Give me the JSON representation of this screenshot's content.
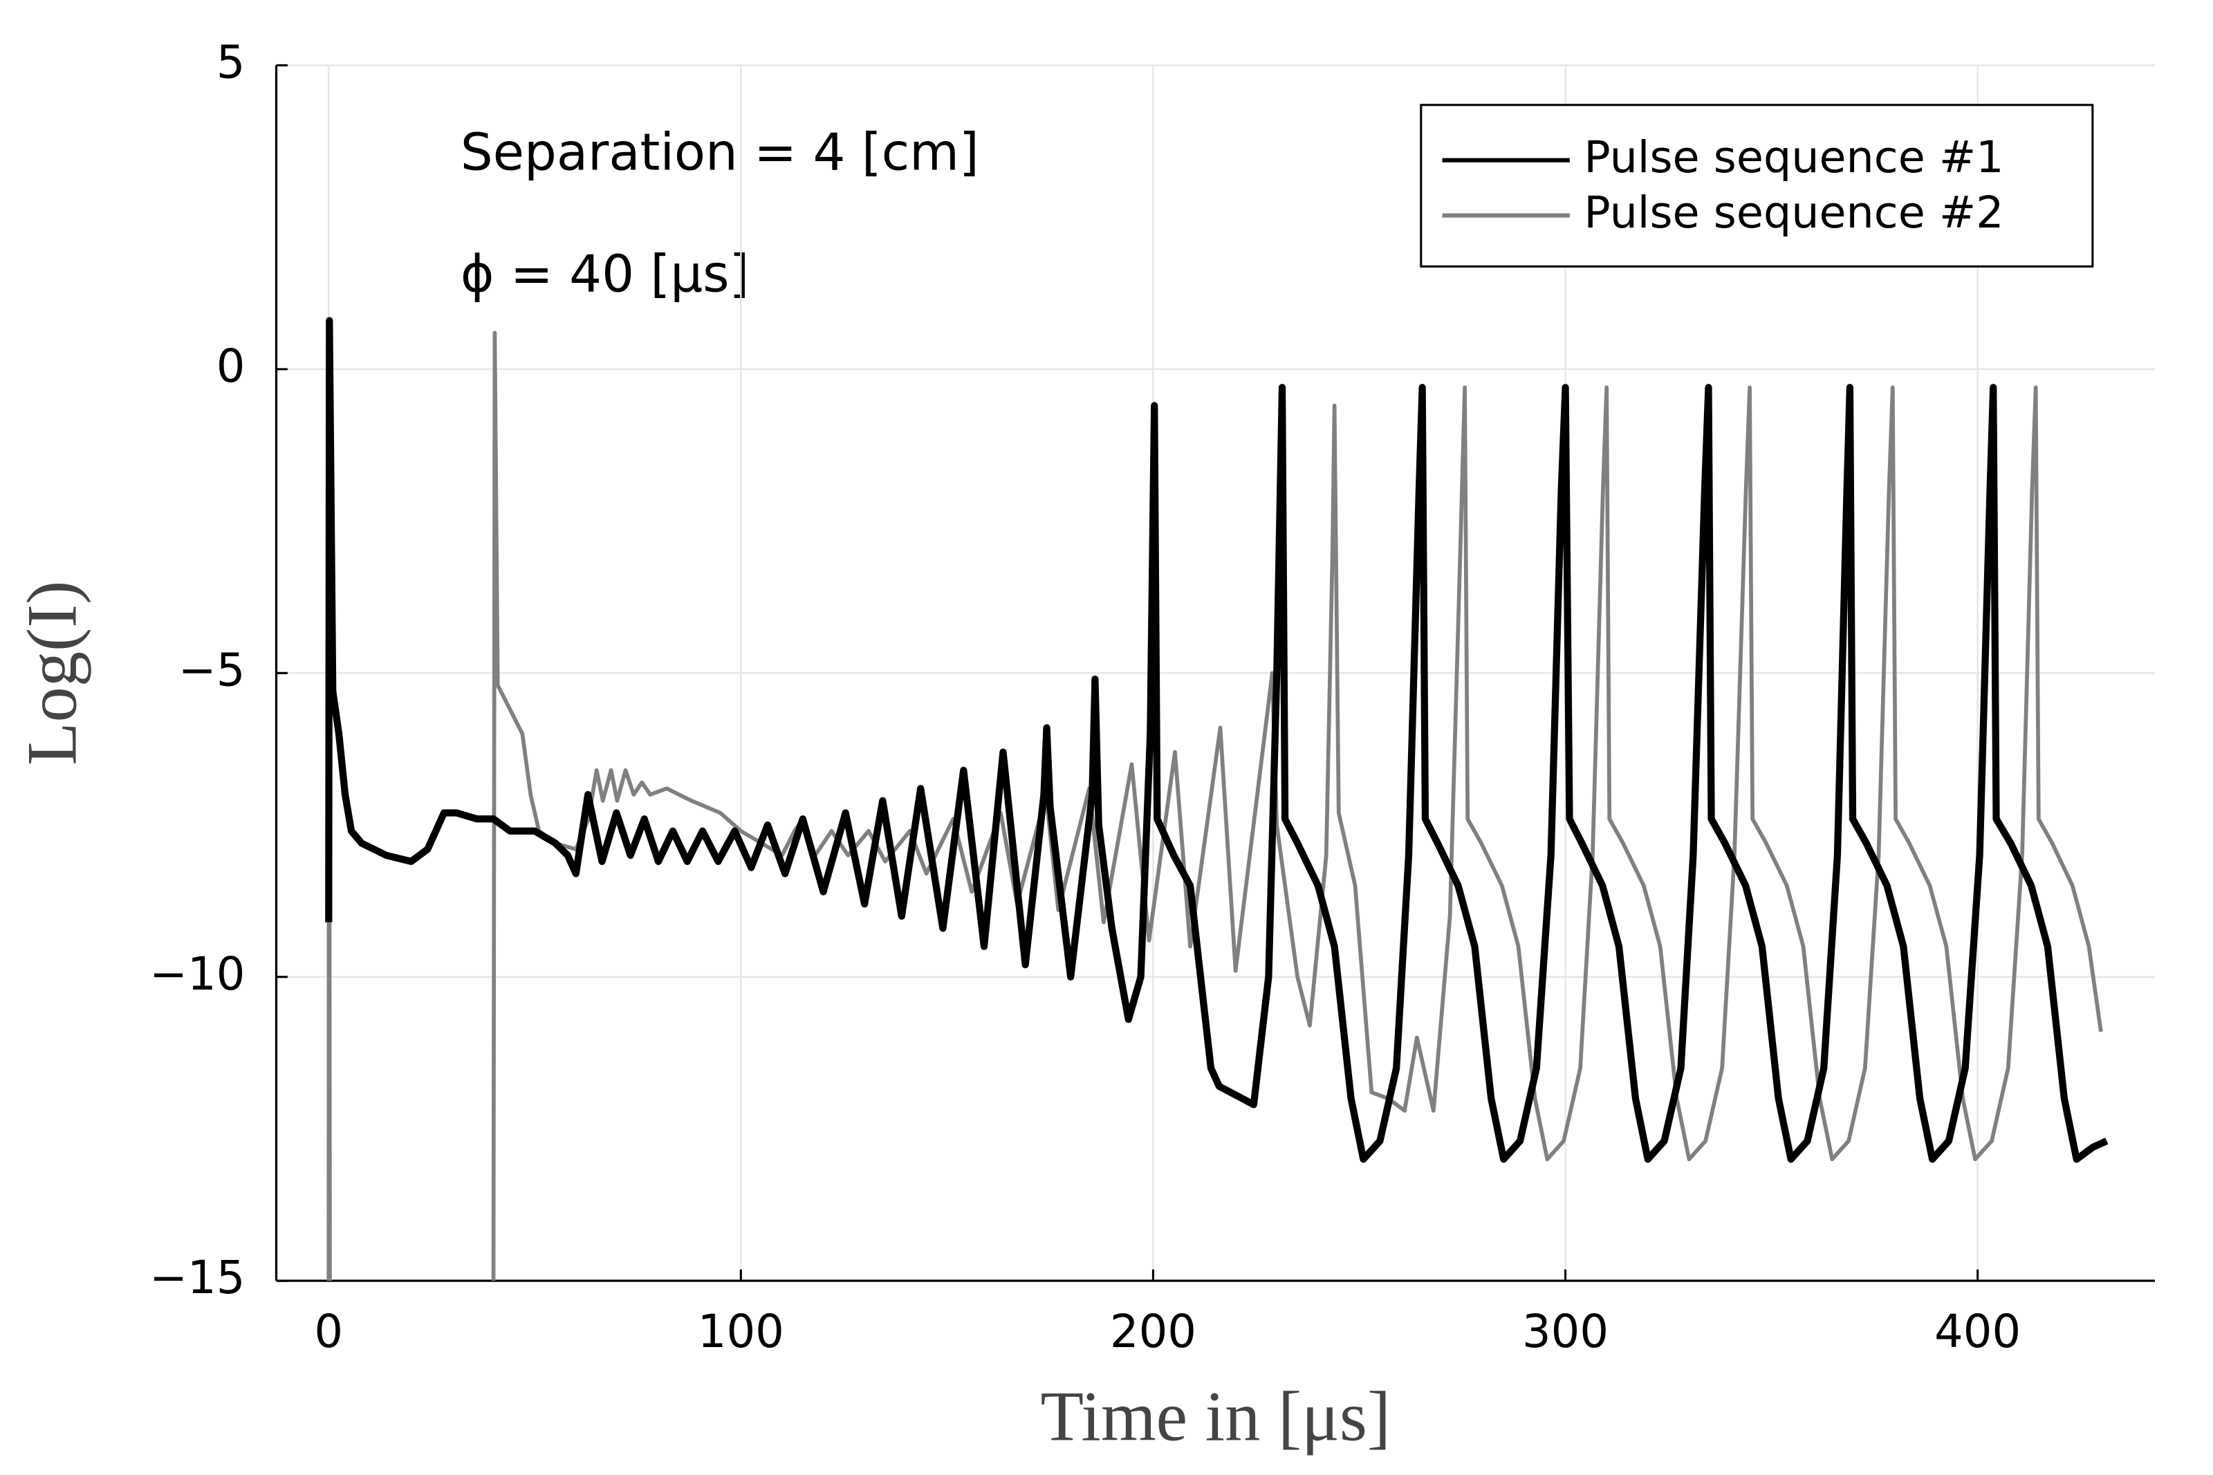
{
  "chart_data": {
    "type": "line",
    "xlabel": "Time in [μs]",
    "ylabel": "Log(I)",
    "annotations": [
      "Separation = 4 [cm]",
      "ϕ = 40 [μs]"
    ],
    "xlim": [
      -12.7,
      443
    ],
    "ylim": [
      -15,
      5
    ],
    "xticks": [
      0,
      100,
      200,
      300,
      400
    ],
    "yticks": [
      {
        "value": -15,
        "label": "−15"
      },
      {
        "value": -10,
        "label": "−10"
      },
      {
        "value": -5,
        "label": "−5"
      },
      0,
      5
    ],
    "grid": true,
    "legend": "top right",
    "series": [
      {
        "name": "Pulse sequence #1",
        "color": "#000000",
        "x": [
          0,
          0.2,
          1,
          2.5,
          4,
          5.5,
          8,
          14,
          20,
          24,
          28,
          31,
          36,
          40,
          44,
          50,
          55,
          58,
          60,
          62.9,
          66.3,
          69.8,
          73.2,
          76.6,
          80,
          83.5,
          87,
          90.7,
          94.5,
          98.5,
          102.5,
          106.5,
          110.7,
          115,
          120,
          125.4,
          130,
          134.4,
          139,
          143.6,
          149,
          154,
          159,
          163.6,
          169,
          173.5,
          174.2,
          175,
          180,
          185.2,
          185.9,
          186.8,
          190,
          194,
          197,
          199.3,
          200.3,
          201,
          205,
          209,
          214,
          216,
          224.4,
          228,
          230,
          231.3,
          232,
          235,
          240,
          244,
          248,
          251,
          255,
          259,
          262,
          264.5,
          265.3,
          266,
          269,
          274,
          278,
          282,
          285,
          289,
          293,
          296.5,
          299,
          300,
          301,
          304,
          309,
          313,
          317,
          320,
          324,
          328,
          331,
          333.8,
          334.7,
          335.4,
          338.7,
          343.7,
          347.7,
          351.7,
          354.7,
          358.7,
          362.7,
          366,
          368.3,
          369,
          369.7,
          373,
          378,
          382,
          386,
          389,
          393,
          397,
          400.5,
          403,
          403.8,
          404.5,
          408,
          413,
          417,
          421,
          424,
          428,
          431.3
        ],
        "values": [
          -9.1,
          0.8,
          -5.3,
          -6.0,
          -7.0,
          -7.6,
          -7.8,
          -8.0,
          -8.1,
          -7.9,
          -7.3,
          -7.3,
          -7.4,
          -7.4,
          -7.6,
          -7.6,
          -7.8,
          -8.0,
          -8.3,
          -7.0,
          -8.1,
          -7.3,
          -8.0,
          -7.4,
          -8.1,
          -7.6,
          -8.1,
          -7.6,
          -8.1,
          -7.6,
          -8.2,
          -7.5,
          -8.3,
          -7.4,
          -8.6,
          -7.3,
          -8.8,
          -7.1,
          -9.0,
          -6.9,
          -9.2,
          -6.6,
          -9.5,
          -6.3,
          -9.8,
          -7.0,
          -5.9,
          -7.2,
          -10.0,
          -7.0,
          -5.1,
          -7.5,
          -9.2,
          -10.7,
          -10.0,
          -6.0,
          -0.6,
          -7.4,
          -8.0,
          -8.5,
          -11.5,
          -11.8,
          -12.1,
          -10.0,
          -5.0,
          -0.3,
          -7.4,
          -7.8,
          -8.5,
          -9.5,
          -12.0,
          -13.0,
          -12.7,
          -11.5,
          -8.0,
          -2.0,
          -0.3,
          -7.4,
          -7.8,
          -8.5,
          -9.5,
          -12.0,
          -13.0,
          -12.7,
          -11.5,
          -8.0,
          -2.0,
          -0.3,
          -7.4,
          -7.8,
          -8.5,
          -9.5,
          -12.0,
          -13.0,
          -12.7,
          -11.5,
          -8.0,
          -2.0,
          -0.3,
          -7.4,
          -7.8,
          -8.5,
          -9.5,
          -12.0,
          -13.0,
          -12.7,
          -11.5,
          -8.0,
          -2.0,
          -0.3,
          -7.4,
          -7.8,
          -8.5,
          -9.5,
          -12.0,
          -13.0,
          -12.7,
          -11.5,
          -8.0,
          -2.0,
          -0.3,
          -7.4,
          -7.8,
          -8.5,
          -9.5,
          -12.0,
          -13.0,
          -12.8,
          -12.7
        ]
      },
      {
        "name": "Pulse sequence #2",
        "color": "#808080",
        "x": [
          0,
          0.1,
          0.3,
          20,
          40,
          40.3,
          41,
          44,
          47,
          49,
          51,
          55,
          60,
          63,
          65,
          66.5,
          68.5,
          70,
          72,
          74,
          76,
          78,
          82,
          88,
          95,
          100,
          105,
          110,
          113,
          115,
          118,
          122,
          126,
          131,
          135,
          141,
          145,
          151.5,
          156,
          163,
          167,
          174,
          177,
          184.5,
          188,
          194.8,
          199,
          205.3,
          209,
          216.3,
          220,
          228.9,
          230,
          235,
          238,
          242,
          243.5,
          244,
          245,
          249,
          253,
          257,
          261,
          264,
          268,
          272,
          274.5,
          275.6,
          276.3,
          279.6,
          284.6,
          288.6,
          292.6,
          295.6,
          299.6,
          303.6,
          306.6,
          309.1,
          310,
          310.7,
          314,
          319,
          323,
          327,
          330,
          334,
          338,
          341,
          343.8,
          344.7,
          345.4,
          348.7,
          353.7,
          357.7,
          361.7,
          364.7,
          368.7,
          372.7,
          376,
          378.5,
          379.4,
          380.1,
          383.4,
          388.4,
          392.4,
          396.4,
          399.4,
          403.4,
          407.4,
          410.8,
          413.2,
          414.1,
          414.8,
          418.1,
          423,
          427,
          429.9
        ],
        "values": [
          -15,
          0.8,
          -15,
          null,
          -15,
          0.6,
          -5.2,
          -5.6,
          -6.0,
          -7.0,
          -7.6,
          -7.8,
          -7.9,
          -7.4,
          -6.6,
          -7.1,
          -6.6,
          -7.1,
          -6.6,
          -7.0,
          -6.8,
          -7.0,
          -6.9,
          -7.1,
          -7.3,
          -7.6,
          -7.8,
          -8.0,
          -7.6,
          -7.4,
          -8.0,
          -7.6,
          -8.0,
          -7.6,
          -8.1,
          -7.6,
          -8.3,
          -7.4,
          -8.6,
          -7.3,
          -8.8,
          -7.0,
          -8.9,
          -6.9,
          -9.1,
          -6.5,
          -9.4,
          -6.3,
          -9.5,
          -5.9,
          -9.9,
          -5.0,
          -7.5,
          -10.0,
          -10.8,
          -8.0,
          -3.0,
          -0.6,
          -7.3,
          -8.5,
          -11.9,
          -12.0,
          -12.2,
          -11.0,
          -12.2,
          -9.0,
          -3.0,
          -0.3,
          -7.4,
          -7.8,
          -8.5,
          -9.5,
          -12.0,
          -13.0,
          -12.7,
          -11.5,
          -8.0,
          -2.0,
          -0.3,
          -7.4,
          -7.8,
          -8.5,
          -9.5,
          -12.0,
          -13.0,
          -12.7,
          -11.5,
          -8.0,
          -2.0,
          -0.3,
          -7.4,
          -7.8,
          -8.5,
          -9.5,
          -12.0,
          -13.0,
          -12.7,
          -11.5,
          -8.0,
          -2.0,
          -0.3,
          -7.4,
          -7.8,
          -8.5,
          -9.5,
          -12.0,
          -13.0,
          -12.7,
          -11.5,
          -8.0,
          -2.0,
          -0.3,
          -7.4,
          -7.8,
          -8.5,
          -9.5,
          -10.9
        ]
      }
    ]
  }
}
